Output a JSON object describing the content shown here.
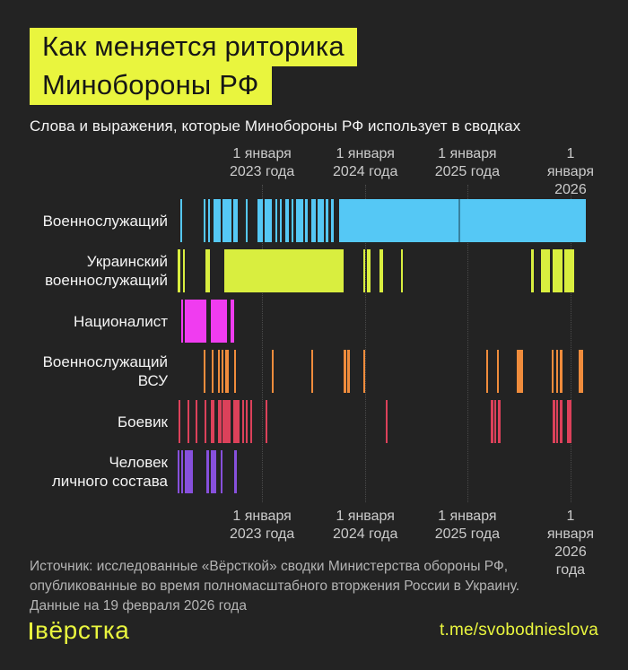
{
  "colors": {
    "background": "#232323",
    "accent_yellow": "#e9f53e",
    "gridline": "#4a4a4a",
    "axis_text": "#cbcbcb",
    "row_label_text": "#f4f4f4",
    "source_text": "#b4b4b4"
  },
  "header": {
    "title_line1": "Как меняется риторика",
    "title_line2": "Минобороны РФ",
    "subtitle": "Слова и выражения, которые Минобороны РФ использует в сводках"
  },
  "chart_data": {
    "type": "timeline-barcode",
    "title": "Слова и выражения, которые Минобороны РФ использует в сводках",
    "x_axis": {
      "ticks": [
        {
          "x_pct": 20.5,
          "label": "1 января\n2023 года"
        },
        {
          "x_pct": 45.3,
          "label": "1 января\n2024 года"
        },
        {
          "x_pct": 69.8,
          "label": "1 января\n2025 года"
        },
        {
          "x_pct": 94.6,
          "label": "1 января\n2026 года"
        }
      ],
      "shown_top_and_bottom": true
    },
    "rows": [
      {
        "label": "Военнослужащий",
        "color": "#55c8f5",
        "segments_pct": [
          [
            0.9,
            1.3
          ],
          [
            6.5,
            6.9
          ],
          [
            7.5,
            8.0
          ],
          [
            8.8,
            10.6
          ],
          [
            11.0,
            13.1
          ],
          [
            13.6,
            14.7
          ],
          [
            16.6,
            17.0
          ],
          [
            19.4,
            20.7
          ],
          [
            21.1,
            22.8
          ],
          [
            23.7,
            24.1
          ],
          [
            24.8,
            25.2
          ],
          [
            26.1,
            26.9
          ],
          [
            27.6,
            28.0
          ],
          [
            28.7,
            30.4
          ],
          [
            30.8,
            31.5
          ],
          [
            32.3,
            33.4
          ],
          [
            33.8,
            35.3
          ],
          [
            35.8,
            36.4
          ],
          [
            37.1,
            37.7
          ],
          [
            39.0,
            98.3
          ]
        ],
        "dividers_pct": [
          67.7
        ]
      },
      {
        "label": "Украинский\nвоеннослужащий",
        "color": "#d9ee3f",
        "segments_pct": [
          [
            0.2,
            0.9
          ],
          [
            1.5,
            1.9
          ],
          [
            6.9,
            8.0
          ],
          [
            11.4,
            40.1
          ],
          [
            44.8,
            45.3
          ],
          [
            45.7,
            46.6
          ],
          [
            48.7,
            49.6
          ],
          [
            53.9,
            54.3
          ],
          [
            85.1,
            85.8
          ],
          [
            87.5,
            89.7
          ],
          [
            90.3,
            92.7
          ],
          [
            93.1,
            95.5
          ]
        ],
        "dividers_pct": []
      },
      {
        "label": "Националист",
        "color": "#f03cf0",
        "segments_pct": [
          [
            1.1,
            1.5
          ],
          [
            1.9,
            7.1
          ],
          [
            8.2,
            12.1
          ],
          [
            12.9,
            13.8
          ]
        ],
        "dividers_pct": []
      },
      {
        "label": "Военнослужащий\nВСУ",
        "color": "#f08c3c",
        "segments_pct": [
          [
            6.5,
            6.9
          ],
          [
            8.4,
            8.8
          ],
          [
            9.9,
            10.3
          ],
          [
            10.8,
            11.2
          ],
          [
            11.6,
            12.5
          ],
          [
            13.8,
            14.2
          ],
          [
            22.8,
            23.3
          ],
          [
            32.3,
            32.8
          ],
          [
            40.1,
            40.7
          ],
          [
            40.9,
            41.6
          ],
          [
            44.8,
            45.3
          ],
          [
            74.4,
            74.8
          ],
          [
            76.9,
            77.4
          ],
          [
            81.7,
            83.2
          ],
          [
            90.1,
            90.5
          ],
          [
            91.2,
            91.6
          ],
          [
            92.0,
            92.7
          ],
          [
            96.6,
            97.6
          ]
        ],
        "dividers_pct": []
      },
      {
        "label": "Боевик",
        "color": "#dc415a",
        "segments_pct": [
          [
            0.4,
            0.9
          ],
          [
            2.6,
            3.0
          ],
          [
            4.5,
            5.0
          ],
          [
            6.7,
            7.1
          ],
          [
            8.2,
            9.1
          ],
          [
            9.9,
            10.8
          ],
          [
            11.0,
            12.9
          ],
          [
            13.6,
            15.1
          ],
          [
            15.7,
            16.2
          ],
          [
            16.6,
            17.0
          ],
          [
            17.7,
            18.1
          ],
          [
            21.3,
            21.8
          ],
          [
            50.2,
            50.6
          ],
          [
            75.4,
            76.1
          ],
          [
            76.3,
            76.7
          ],
          [
            77.2,
            77.8
          ],
          [
            90.3,
            90.9
          ],
          [
            91.2,
            91.6
          ],
          [
            92.0,
            92.7
          ],
          [
            93.8,
            94.8
          ]
        ],
        "dividers_pct": []
      },
      {
        "label": "Человек\nличного состава",
        "color": "#8750dc",
        "segments_pct": [
          [
            0.2,
            0.6
          ],
          [
            1.1,
            1.5
          ],
          [
            1.9,
            3.9
          ],
          [
            7.1,
            7.8
          ],
          [
            8.2,
            9.5
          ],
          [
            10.6,
            11.0
          ],
          [
            13.8,
            14.4
          ]
        ],
        "dividers_pct": []
      }
    ]
  },
  "footer": {
    "source_text": "Источник: исследованные «Вёрсткой» сводки Министерства обороны РФ,\nопубликованные во время полномасштабного вторжения России в Украину.\nДанные на 19 февраля 2026 года",
    "logo_text": "вёрстка",
    "link_text": "t.me/svobodnieslova"
  }
}
